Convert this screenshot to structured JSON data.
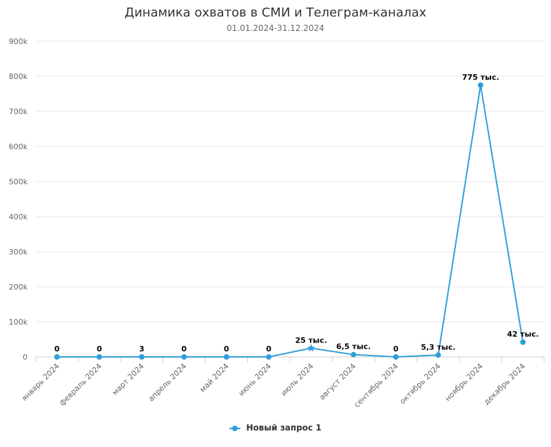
{
  "chart_data": {
    "type": "line",
    "title": "Динамика охватов в СМИ и Телеграм-каналах",
    "subtitle": "01.01.2024-31.12.2024",
    "categories": [
      "январь 2024",
      "февраль 2024",
      "март 2024",
      "апрель 2024",
      "май 2024",
      "июнь 2024",
      "июль 2024",
      "август 2024",
      "сентябрь 2024",
      "октябрь 2024",
      "ноябрь 2024",
      "декабрь 2024"
    ],
    "series": [
      {
        "name": "Новый запрос 1",
        "values": [
          0,
          0,
          3,
          0,
          0,
          0,
          25000,
          6500,
          0,
          5300,
          775000,
          42000
        ],
        "data_labels": [
          "0",
          "0",
          "3",
          "0",
          "0",
          "0",
          "25 тыс.",
          "6,5 тыс.",
          "0",
          "5,3 тыс.",
          "775 тыс.",
          "42 тыс."
        ],
        "markers": [
          "circle",
          "circle",
          "circle",
          "circle",
          "circle",
          "circle",
          "star",
          "circle",
          "circle",
          "circle",
          "circle",
          "circle"
        ],
        "color": "#2f9fd8"
      }
    ],
    "ylim": [
      0,
      900000
    ],
    "yticks": [
      0,
      100000,
      200000,
      300000,
      400000,
      500000,
      600000,
      700000,
      800000,
      900000
    ],
    "ytick_labels": [
      "0",
      "100k",
      "200k",
      "300k",
      "400k",
      "500k",
      "600k",
      "700k",
      "800k",
      "900k"
    ],
    "grid": true,
    "legend_position": "bottom-center"
  }
}
